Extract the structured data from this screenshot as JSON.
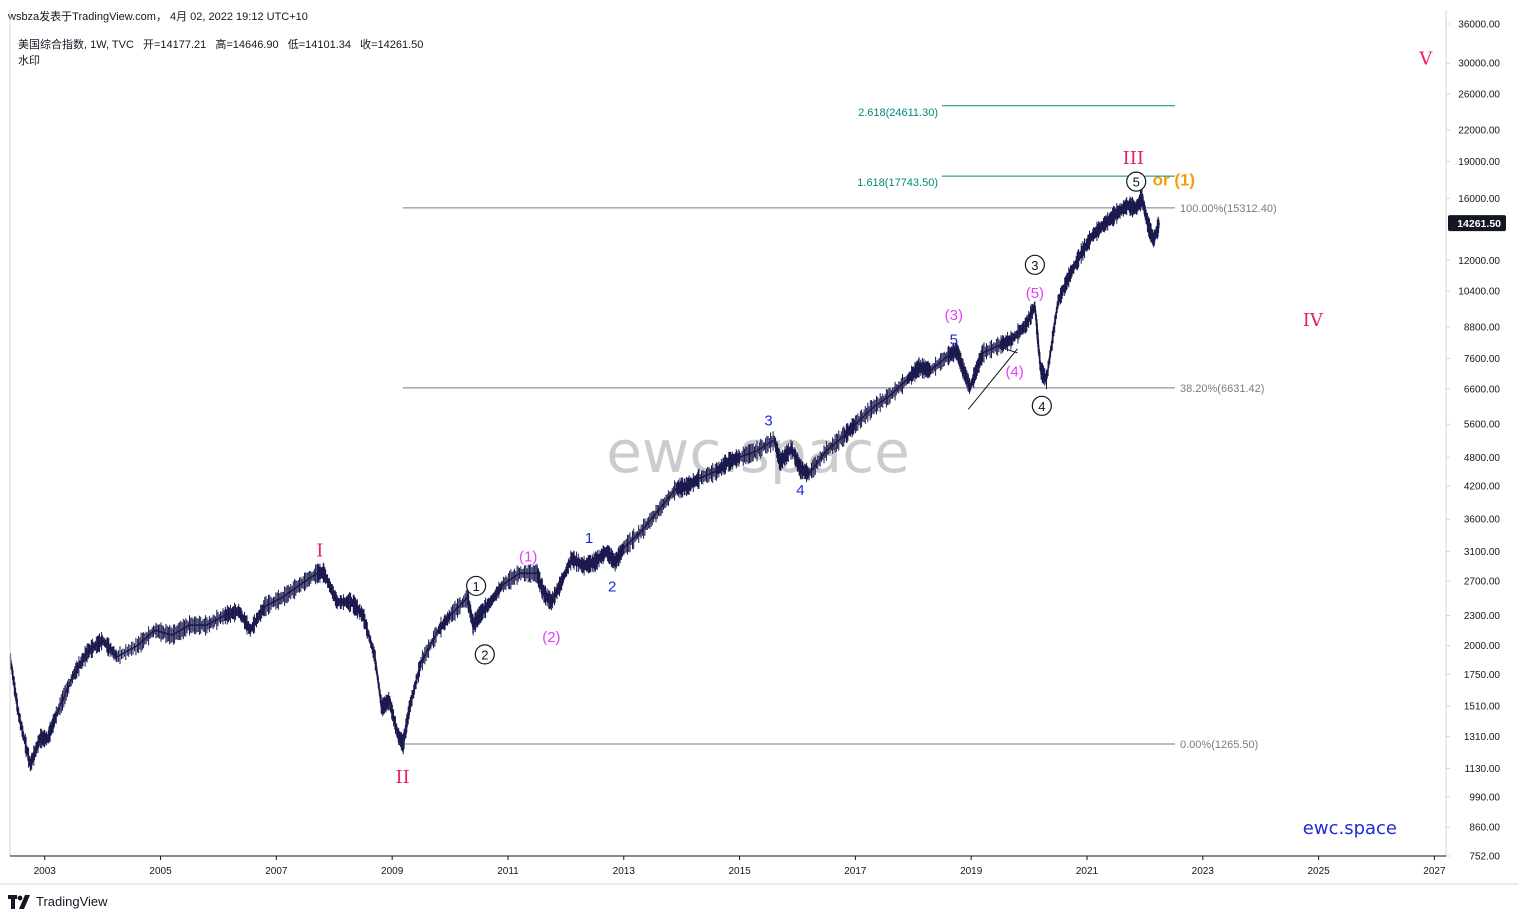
{
  "header": {
    "publish": "wsbza发表于TradingView.com， 4月 02, 2022 19:12 UTC+10",
    "symbol": "美国综合指数, 1W, TVC",
    "open_label": "开",
    "open": "=14177.21",
    "high_label": "高",
    "high": "=14646.90",
    "low_label": "低",
    "low": "=14101.34",
    "close_label": "收",
    "close": "=14261.50",
    "watermark_label": "水印"
  },
  "footer": {
    "brand": "TradingView"
  },
  "watermark": {
    "center": "ewc.space",
    "corner": "ewc.space"
  },
  "colors": {
    "price": "#1a1a4e",
    "wave_major": "#e91e63",
    "wave_magenta": "#e040fb",
    "wave_blue": "#1e2bd8",
    "wave_orange": "#f59e0b",
    "fib_ext": "#00897b",
    "fib_retr": "#787b86",
    "axis_text": "#131722",
    "grid_border": "#d1d4dc"
  },
  "chart_data": {
    "type": "line",
    "title": "美国综合指数, 1W, TVC",
    "y_scale": "log",
    "ylim": [
      752,
      36000
    ],
    "xlim": [
      2002.4,
      2027.2
    ],
    "y_ticks": [
      "36000.00",
      "30000.00",
      "26000.00",
      "22000.00",
      "19000.00",
      "16000.00",
      "12000.00",
      "10400.00",
      "8800.00",
      "7600.00",
      "6600.00",
      "5600.00",
      "4800.00",
      "4200.00",
      "3600.00",
      "3100.00",
      "2700.00",
      "2300.00",
      "2000.00",
      "1750.00",
      "1510.00",
      "1310.00",
      "1130.00",
      "990.00",
      "860.00",
      "752.00"
    ],
    "x_ticks": [
      "2003",
      "2005",
      "2007",
      "2009",
      "2011",
      "2013",
      "2015",
      "2017",
      "2019",
      "2021",
      "2023",
      "2025",
      "2027"
    ],
    "last_price": "14261.50",
    "series": [
      {
        "x": [
          2002.4,
          2002.55,
          2002.75,
          2002.92,
          2003.05,
          2003.2,
          2003.5,
          2003.75,
          2004.0,
          2004.25,
          2004.6,
          2004.9,
          2005.2,
          2005.5,
          2005.8,
          2006.1,
          2006.35,
          2006.55,
          2006.8,
          2007.1,
          2007.4,
          2007.7,
          2007.82,
          2008.05,
          2008.3,
          2008.5,
          2008.7,
          2008.82,
          2008.95,
          2009.1,
          2009.19,
          2009.3,
          2009.5,
          2009.8,
          2010.0,
          2010.3,
          2010.4,
          2010.5,
          2010.7,
          2010.9,
          2011.2,
          2011.5,
          2011.62,
          2011.75,
          2011.9,
          2012.1,
          2012.3,
          2012.5,
          2012.7,
          2012.85,
          2013.0,
          2013.3,
          2013.6,
          2013.9,
          2014.1,
          2014.3,
          2014.6,
          2014.8,
          2015.0,
          2015.3,
          2015.6,
          2015.7,
          2015.9,
          2016.05,
          2016.2,
          2016.5,
          2016.8,
          2017.0,
          2017.3,
          2017.6,
          2017.9,
          2018.1,
          2018.3,
          2018.6,
          2018.75,
          2018.85,
          2018.98,
          2019.2,
          2019.5,
          2019.7,
          2019.95,
          2020.1,
          2020.2,
          2020.3,
          2020.5,
          2020.7,
          2020.9,
          2021.1,
          2021.3,
          2021.5,
          2021.7,
          2021.85,
          2021.95,
          2022.05,
          2022.15,
          2022.25
        ],
        "y": [
          1900,
          1450,
          1150,
          1300,
          1300,
          1450,
          1750,
          1950,
          2050,
          1900,
          2000,
          2150,
          2100,
          2200,
          2200,
          2300,
          2350,
          2150,
          2400,
          2500,
          2650,
          2800,
          2810,
          2450,
          2450,
          2300,
          1900,
          1500,
          1550,
          1320,
          1266,
          1500,
          1850,
          2150,
          2300,
          2500,
          2200,
          2300,
          2450,
          2650,
          2800,
          2800,
          2550,
          2450,
          2650,
          3000,
          2900,
          2950,
          3100,
          2950,
          3150,
          3400,
          3750,
          4150,
          4200,
          4350,
          4500,
          4700,
          4800,
          4950,
          5200,
          4700,
          5000,
          4550,
          4450,
          4950,
          5300,
          5600,
          6050,
          6400,
          6900,
          7300,
          7200,
          7700,
          7900,
          7300,
          6650,
          7800,
          8100,
          8300,
          8900,
          9700,
          7200,
          6900,
          9900,
          11200,
          12400,
          13500,
          14200,
          14900,
          15500,
          15300,
          16050,
          14200,
          13200,
          14261
        ]
      }
    ],
    "fib_levels": [
      {
        "label": "2.618(24611.30)",
        "value": 24611.3
      },
      {
        "label": "1.618(17743.50)",
        "value": 17743.5
      },
      {
        "label": "100.00%(15312.40)",
        "value": 15312.4
      },
      {
        "label": "38.20%(6631.42)",
        "value": 6631.42
      },
      {
        "label": "0.00%(1265.50)",
        "value": 1265.5
      }
    ],
    "wave_labels": [
      {
        "text": "I",
        "x": 2007.75,
        "y": 3100,
        "color": "wave_major",
        "circle": false
      },
      {
        "text": "II",
        "x": 2009.18,
        "y": 1080,
        "color": "wave_major",
        "circle": false
      },
      {
        "text": "III",
        "x": 2021.8,
        "y": 19200,
        "color": "wave_major",
        "circle": false
      },
      {
        "text": "IV",
        "x": 2024.9,
        "y": 9050,
        "color": "wave_major",
        "circle": false
      },
      {
        "text": "V",
        "x": 2026.85,
        "y": 30500,
        "color": "wave_major",
        "circle": false
      },
      {
        "text": "1",
        "x": 2010.45,
        "y": 2640,
        "color": "wave_black",
        "circle": true
      },
      {
        "text": "2",
        "x": 2010.6,
        "y": 1920,
        "color": "wave_black",
        "circle": true
      },
      {
        "text": "3",
        "x": 2020.1,
        "y": 11750,
        "color": "wave_black",
        "circle": true
      },
      {
        "text": "4",
        "x": 2020.22,
        "y": 6100,
        "color": "wave_black",
        "circle": true
      },
      {
        "text": "5",
        "x": 2021.85,
        "y": 17300,
        "color": "wave_black",
        "circle": true
      },
      {
        "text": "(1)",
        "x": 2011.35,
        "y": 3030,
        "color": "wave_magenta",
        "circle": false
      },
      {
        "text": "(2)",
        "x": 2011.75,
        "y": 2080,
        "color": "wave_magenta",
        "circle": false
      },
      {
        "text": "(3)",
        "x": 2018.7,
        "y": 9300,
        "color": "wave_magenta",
        "circle": false
      },
      {
        "text": "(4)",
        "x": 2019.75,
        "y": 7150,
        "color": "wave_magenta",
        "circle": false
      },
      {
        "text": "(5)",
        "x": 2020.1,
        "y": 10300,
        "color": "wave_magenta",
        "circle": false
      },
      {
        "text": "1",
        "x": 2012.4,
        "y": 3300,
        "color": "wave_blue",
        "circle": false
      },
      {
        "text": "2",
        "x": 2012.8,
        "y": 2630,
        "color": "wave_blue",
        "circle": false
      },
      {
        "text": "3",
        "x": 2015.5,
        "y": 5700,
        "color": "wave_blue",
        "circle": false
      },
      {
        "text": "4",
        "x": 2016.05,
        "y": 4120,
        "color": "wave_blue",
        "circle": false
      },
      {
        "text": "5",
        "x": 2018.7,
        "y": 8300,
        "color": "wave_blue",
        "circle": false
      },
      {
        "text": "or (1)",
        "x": 2022.5,
        "y": 17400,
        "color": "wave_orange",
        "circle": false
      }
    ]
  }
}
